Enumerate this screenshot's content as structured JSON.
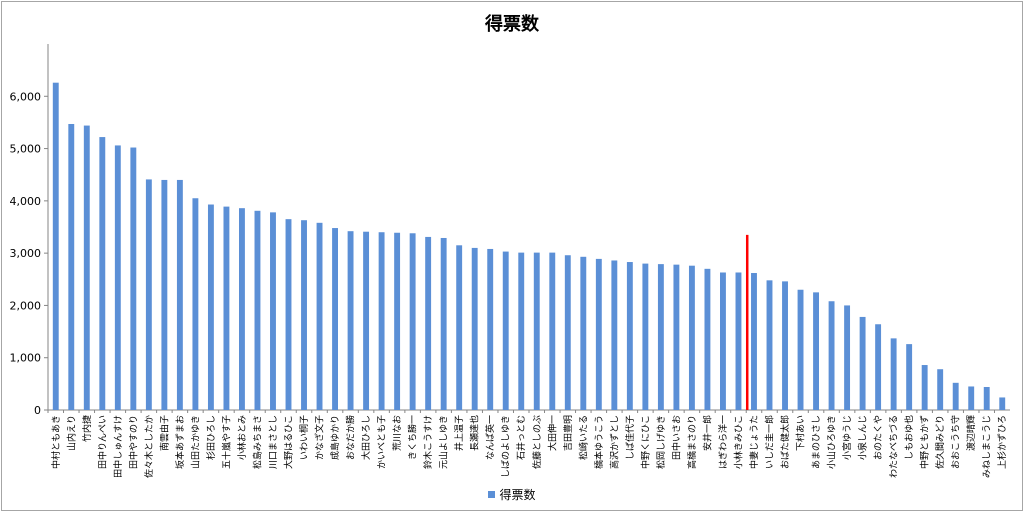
{
  "chart_data": {
    "type": "bar",
    "title": "得票数",
    "xlabel": "",
    "ylabel": "",
    "ylim": [
      0,
      7000
    ],
    "y_ticks": [
      "0",
      "1,000",
      "2,000",
      "3,000",
      "4,000",
      "5,000",
      "6,000"
    ],
    "grid": false,
    "legend_position": "bottom",
    "bar_color": "#5b8fd6",
    "marker_color": "#ff0000",
    "marker_after_index": 44,
    "categories": [
      "中村ともあき",
      "山内えり",
      "竹内捷",
      "田中りんぺい",
      "田中しゅんすけ",
      "田中やすのり",
      "佐々木としたか",
      "南雲由子",
      "坂本あずまお",
      "山田たかゆき",
      "杉田ひろし",
      "五十嵐やす子",
      "小林おとみ",
      "松島みちまさ",
      "川口まさとし",
      "大野はるひこ",
      "いわい桐子",
      "かなざ文子",
      "成島ゆかり",
      "おなだか勝",
      "大田ひろし",
      "かいべとも子",
      "荒川なお",
      "きくち勝一",
      "鈴木こうすけ",
      "元山よしゆき",
      "井上温子",
      "長瀬達也",
      "なんば英一",
      "しばのよしゆき",
      "石井っとむ",
      "佐藤としのぶ",
      "大田伸一",
      "吉田豊明",
      "松崎いたる",
      "橋本ゆうこう",
      "高沢かずとし",
      "しば佳代子",
      "中野くにひこ",
      "松岡しげゆき",
      "田中いさお",
      "高橋まさのり",
      "安井一郎",
      "はぎわら洋一",
      "小林きみひこ",
      "中妻じょうた",
      "いしだ圭一郎",
      "おばた健太郎",
      "下村あい",
      "あまのひさし",
      "小山ひろゆき",
      "小宮ゆうじ",
      "小泉しんじ",
      "おのたくや",
      "わたなべちづる",
      "しもおゆ也",
      "中野ともかず",
      "佐久間みどり",
      "おおこうち守",
      "渡辺晴輝",
      "みねしまこうじ",
      "上杉かずひろ"
    ],
    "series": [
      {
        "name": "得票数",
        "values": [
          6260,
          5470,
          5440,
          5220,
          5060,
          5020,
          4410,
          4400,
          4400,
          4050,
          3930,
          3890,
          3860,
          3810,
          3780,
          3650,
          3630,
          3580,
          3480,
          3420,
          3410,
          3400,
          3390,
          3380,
          3310,
          3290,
          3150,
          3100,
          3080,
          3030,
          3010,
          3010,
          3010,
          2960,
          2930,
          2890,
          2860,
          2830,
          2800,
          2790,
          2780,
          2760,
          2700,
          2630,
          2630,
          2620,
          2480,
          2460,
          2300,
          2250,
          2080,
          2000,
          1780,
          1640,
          1370,
          1260,
          860,
          780,
          520,
          450,
          440,
          240
        ]
      }
    ]
  }
}
